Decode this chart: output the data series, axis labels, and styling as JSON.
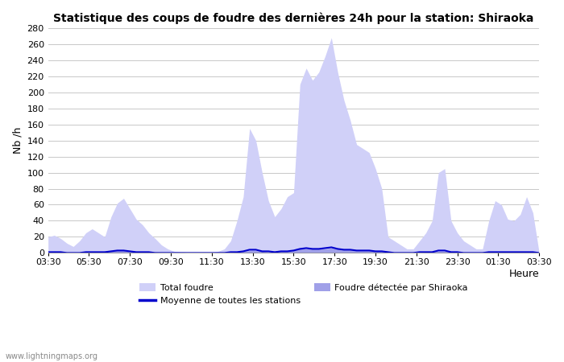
{
  "title": "Statistique des coups de foudre des dernières 24h pour la station: Shiraoka",
  "xlabel": "Heure",
  "ylabel": "Nb /h",
  "ylim": [
    0,
    280
  ],
  "yticks": [
    0,
    20,
    40,
    60,
    80,
    100,
    120,
    140,
    160,
    180,
    200,
    220,
    240,
    260,
    280
  ],
  "xtick_labels": [
    "03:30",
    "05:30",
    "07:30",
    "09:30",
    "11:30",
    "13:30",
    "15:30",
    "17:30",
    "19:30",
    "21:30",
    "23:30",
    "01:30",
    "03:30"
  ],
  "background_color": "#ffffff",
  "plot_bg_color": "#ffffff",
  "grid_color": "#c8c8c8",
  "color_total": "#d0d0f8",
  "color_detected": "#a0a0e8",
  "color_moyenne": "#0000cc",
  "watermark": "www.lightningmaps.org",
  "total_foudre": [
    20,
    22,
    18,
    12,
    8,
    15,
    25,
    30,
    25,
    20,
    45,
    62,
    68,
    55,
    42,
    35,
    25,
    18,
    10,
    5,
    2,
    1,
    0,
    0,
    0,
    0,
    0,
    2,
    5,
    15,
    40,
    70,
    155,
    140,
    100,
    65,
    45,
    55,
    70,
    75,
    210,
    230,
    215,
    225,
    245,
    268,
    225,
    190,
    165,
    135,
    130,
    125,
    105,
    80,
    20,
    15,
    10,
    5,
    5,
    15,
    25,
    40,
    100,
    105,
    40,
    25,
    15,
    10,
    5,
    5,
    40,
    65,
    60,
    42,
    40,
    48,
    70,
    50,
    0
  ],
  "detected_shiraoka": [
    1,
    2,
    1,
    0,
    0,
    0,
    1,
    1,
    1,
    1,
    2,
    3,
    3,
    2,
    1,
    1,
    1,
    1,
    0,
    0,
    0,
    0,
    0,
    0,
    0,
    0,
    0,
    0,
    0,
    0,
    1,
    2,
    3,
    3,
    2,
    1,
    1,
    2,
    2,
    3,
    5,
    5,
    5,
    5,
    5,
    6,
    5,
    4,
    4,
    3,
    3,
    3,
    2,
    2,
    0,
    0,
    0,
    0,
    0,
    0,
    1,
    1,
    2,
    2,
    1,
    1,
    0,
    0,
    0,
    0,
    1,
    1,
    1,
    1,
    1,
    1,
    1,
    1,
    0
  ],
  "moyenne": [
    1,
    1,
    1,
    0,
    0,
    0,
    1,
    1,
    1,
    1,
    2,
    3,
    3,
    2,
    1,
    1,
    1,
    0,
    0,
    0,
    0,
    0,
    0,
    0,
    0,
    0,
    0,
    0,
    0,
    1,
    1,
    2,
    4,
    4,
    2,
    2,
    1,
    2,
    2,
    3,
    5,
    6,
    5,
    5,
    6,
    7,
    5,
    4,
    4,
    3,
    3,
    3,
    2,
    2,
    1,
    0,
    0,
    0,
    0,
    1,
    1,
    1,
    3,
    3,
    1,
    1,
    0,
    0,
    0,
    0,
    1,
    1,
    1,
    1,
    1,
    1,
    1,
    1,
    0
  ]
}
